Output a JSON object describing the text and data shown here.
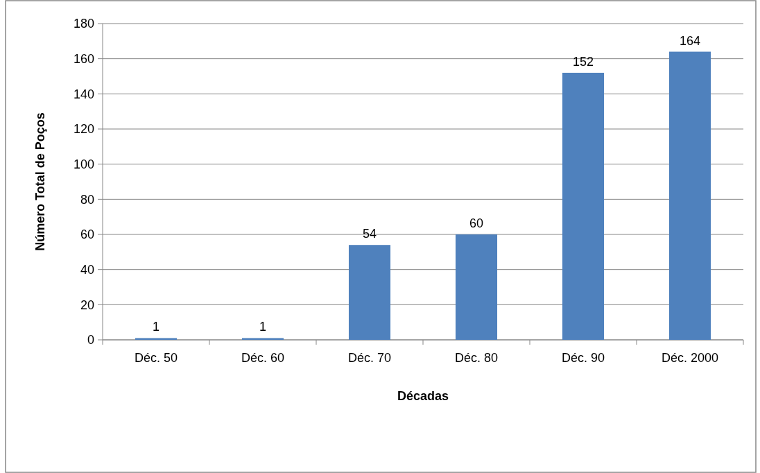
{
  "chart_data": {
    "type": "bar",
    "xlabel": "Décadas",
    "ylabel": "Número Total de Poços",
    "categories": [
      "Déc. 50",
      "Déc. 60",
      "Déc. 70",
      "Déc. 80",
      "Déc. 90",
      "Déc. 2000"
    ],
    "values": [
      1,
      1,
      54,
      60,
      152,
      164
    ],
    "color": "#4f81bd",
    "ylim": [
      0,
      180
    ],
    "yticks": [
      0,
      20,
      40,
      60,
      80,
      100,
      120,
      140,
      160,
      180
    ],
    "grid": "y",
    "data_labels": true
  }
}
